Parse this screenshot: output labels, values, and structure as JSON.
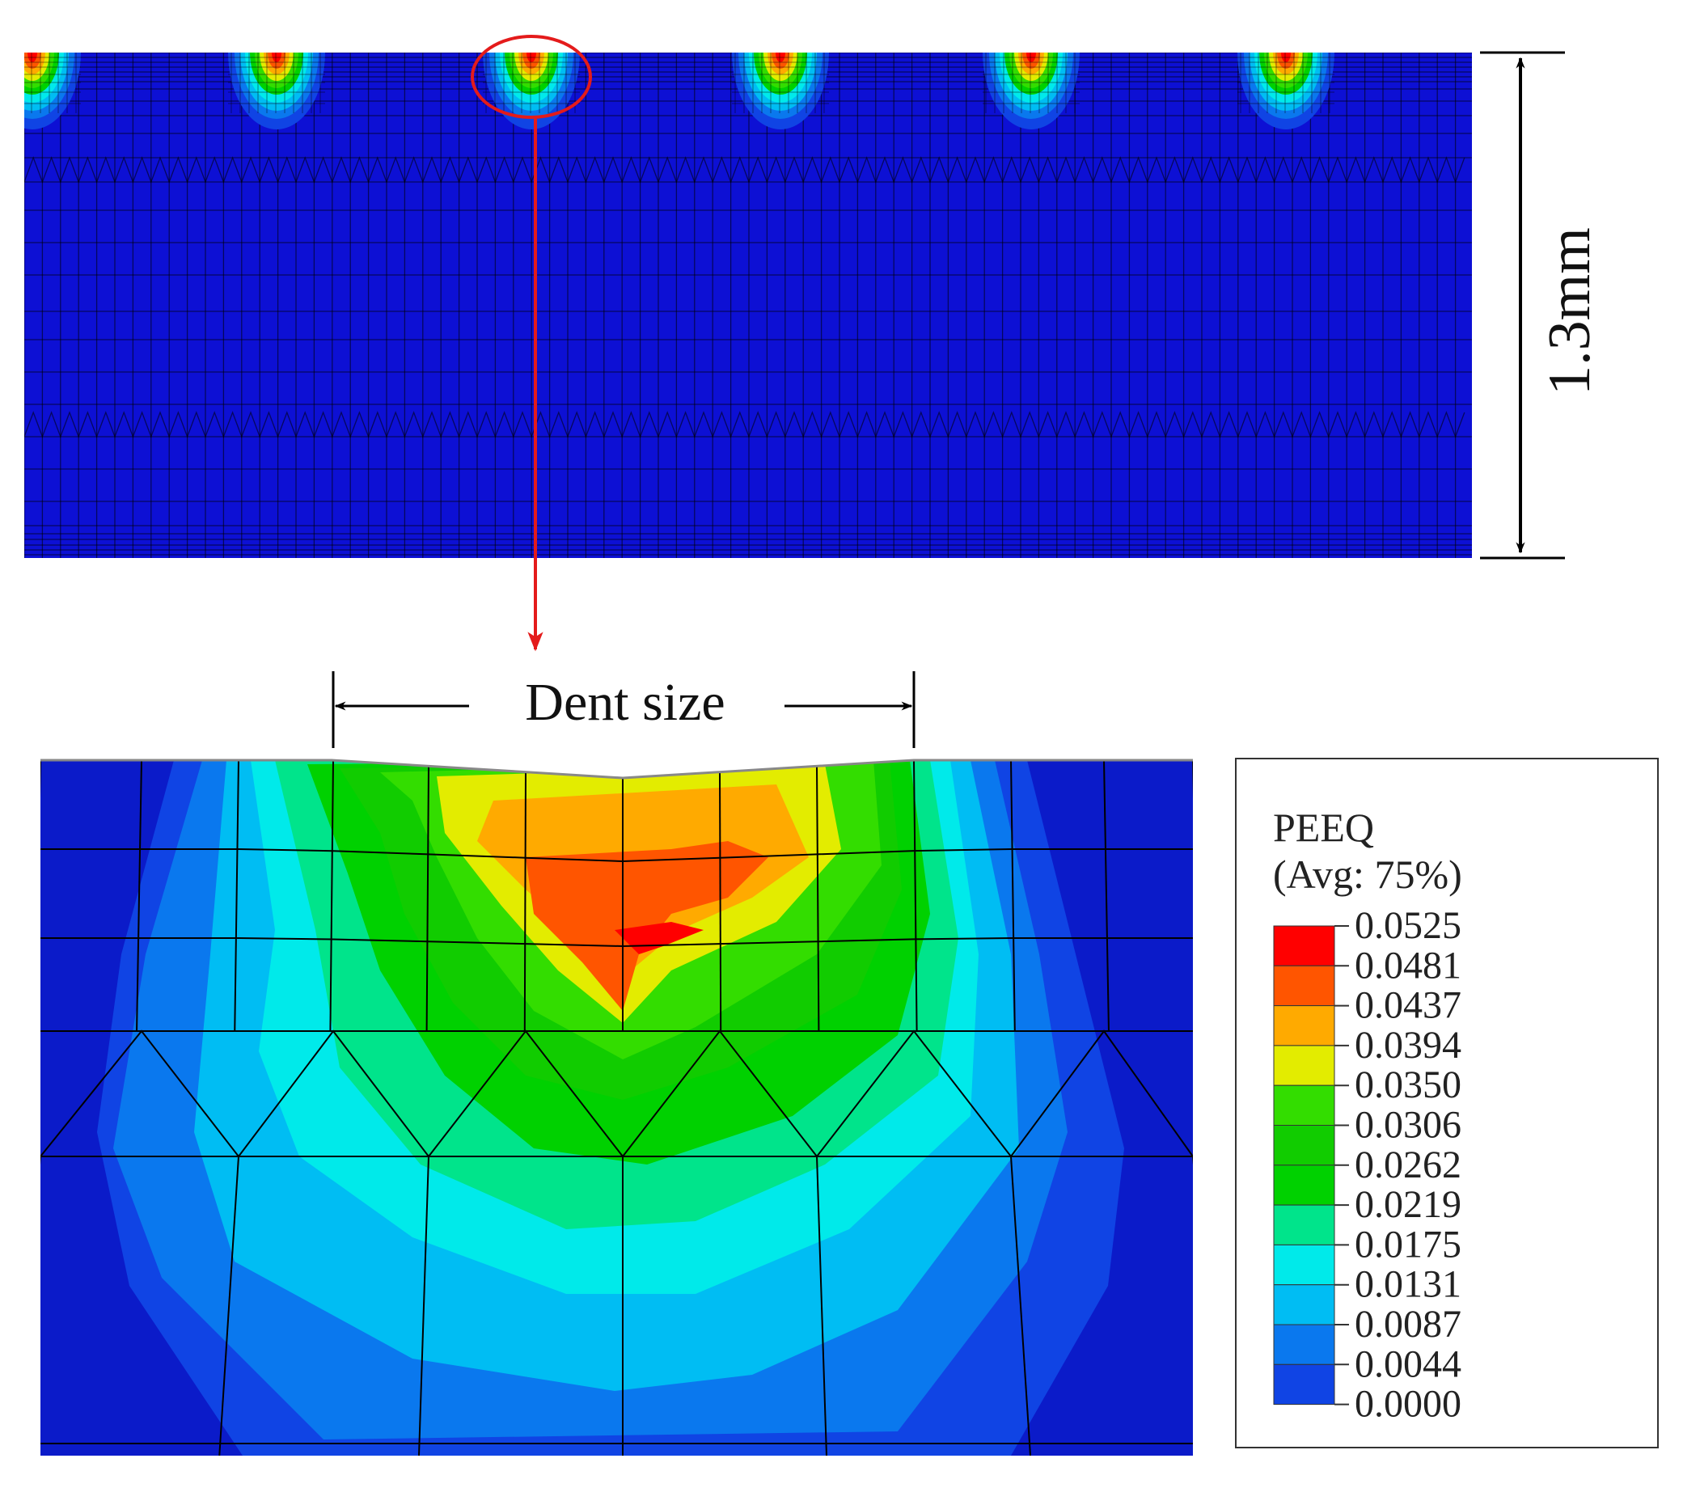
{
  "dimension": {
    "height_label": "1.3mm"
  },
  "callout": {
    "label": "Dent size"
  },
  "legend": {
    "variable": "PEEQ",
    "averaging": "(Avg: 75%)",
    "values": [
      "0.0525",
      "0.0481",
      "0.0437",
      "0.0394",
      "0.0350",
      "0.0306",
      "0.0262",
      "0.0219",
      "0.0175",
      "0.0131",
      "0.0087",
      "0.0044",
      "0.0000"
    ],
    "colors": [
      "#ff0000",
      "#ff5500",
      "#ffaa00",
      "#e3ec00",
      "#33dd00",
      "#11cc00",
      "#00d100",
      "#00e48b",
      "#00eaea",
      "#00bdf3",
      "#0a78ee",
      "#1044e4"
    ]
  },
  "colors": {
    "mesh_blue": "#0d10d4",
    "background_blue": "#0b1bc9",
    "callout_red": "#e41b1b"
  },
  "model": {
    "dent_count": 6
  }
}
